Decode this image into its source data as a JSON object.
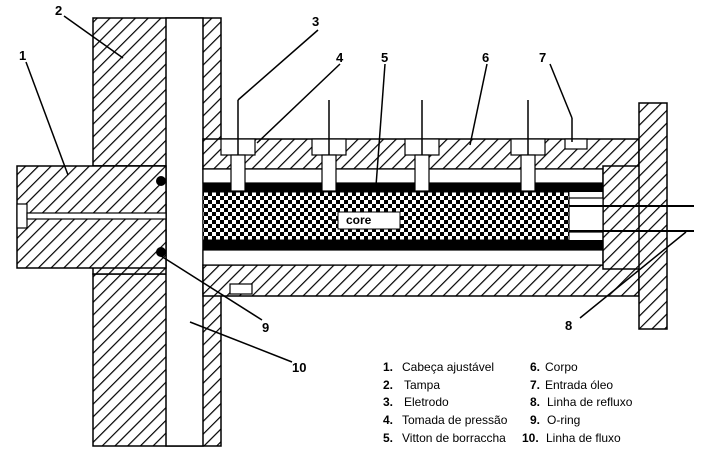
{
  "callouts": [
    "1",
    "2",
    "3",
    "4",
    "5",
    "6",
    "7",
    "8",
    "9",
    "10"
  ],
  "core_label": "core",
  "legend": [
    {
      "num": "1.",
      "text": "Cabeça ajustável"
    },
    {
      "num": "2.",
      "text": "Tampa"
    },
    {
      "num": "3.",
      "text": "Eletrodo"
    },
    {
      "num": "4.",
      "text": "Tomada de pressão"
    },
    {
      "num": "5.",
      "text": "Vitton de borraccha"
    },
    {
      "num": "6.",
      "text": "Corpo"
    },
    {
      "num": "7.",
      "text": "Entrada óleo"
    },
    {
      "num": "8.",
      "text": "Linha de refluxo"
    },
    {
      "num": "9.",
      "text": "O-ring"
    },
    {
      "num": "10.",
      "text": "Linha de fluxo"
    }
  ]
}
